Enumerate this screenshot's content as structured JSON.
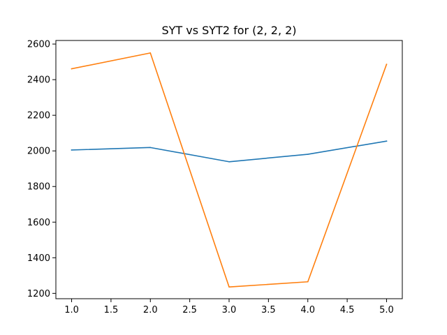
{
  "chart_data": {
    "type": "line",
    "title": "SYT vs SYT2 for (2, 2, 2)",
    "xlabel": "",
    "ylabel": "",
    "x": [
      1.0,
      2.0,
      3.0,
      4.0,
      5.0
    ],
    "series": [
      {
        "values": [
          2005,
          2019,
          1939,
          1981,
          2055
        ],
        "color": "#1f77b4"
      },
      {
        "values": [
          2461,
          2550,
          1236,
          1265,
          2486
        ],
        "color": "#ff7f0e"
      }
    ],
    "xlim": [
      0.8,
      5.2
    ],
    "ylim": [
      1170,
      2620
    ],
    "xticks": [
      1.0,
      1.5,
      2.0,
      2.5,
      3.0,
      3.5,
      4.0,
      4.5,
      5.0
    ],
    "xtick_labels": [
      "1.0",
      "1.5",
      "2.0",
      "2.5",
      "3.0",
      "3.5",
      "4.0",
      "4.5",
      "5.0"
    ],
    "yticks": [
      1200,
      1400,
      1600,
      1800,
      2000,
      2200,
      2400,
      2600
    ],
    "ytick_labels": [
      "1200",
      "1400",
      "1600",
      "1800",
      "2000",
      "2200",
      "2400",
      "2600"
    ],
    "grid": false,
    "legend": "none"
  }
}
